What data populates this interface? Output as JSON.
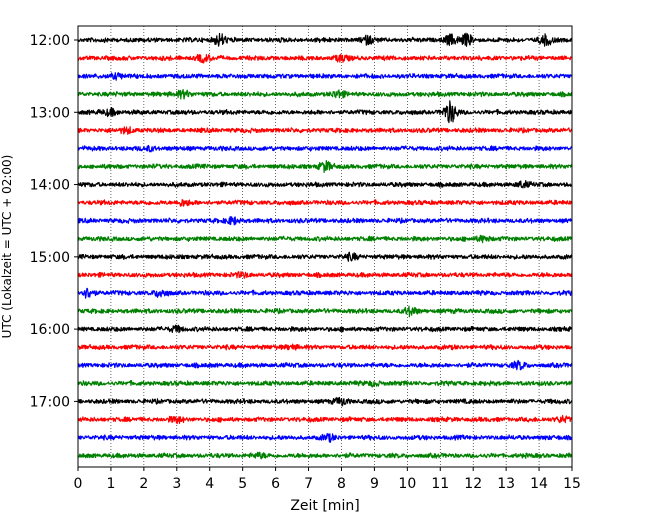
{
  "chart_data": {
    "type": "line",
    "title": "",
    "xlabel": "Zeit  [min]",
    "ylabel": "UTC (Lokalzeit = UTC + 02:00)",
    "xlim": [
      0,
      15
    ],
    "x_ticks": [
      0,
      1,
      2,
      3,
      4,
      5,
      6,
      7,
      8,
      9,
      10,
      11,
      12,
      13,
      14,
      15
    ],
    "grid": "vertical dotted",
    "legend": "none",
    "y_ticks": [
      "12:00",
      "13:00",
      "14:00",
      "15:00",
      "16:00",
      "17:00"
    ],
    "trace_colors": [
      "#000000",
      "#ff0000",
      "#0000ff",
      "#008000"
    ],
    "traces": [
      {
        "start": "12:00",
        "color": "#000000",
        "events": [
          {
            "min": 4.3,
            "amp": 0.9
          },
          {
            "min": 8.8,
            "amp": 0.5
          },
          {
            "min": 11.3,
            "amp": 0.7
          },
          {
            "min": 11.8,
            "amp": 0.8
          },
          {
            "min": 14.2,
            "amp": 0.7
          }
        ]
      },
      {
        "start": "12:15",
        "color": "#ff0000",
        "events": [
          {
            "min": 3.8,
            "amp": 0.5
          },
          {
            "min": 8.0,
            "amp": 0.4
          }
        ]
      },
      {
        "start": "12:30",
        "color": "#0000ff",
        "events": [
          {
            "min": 1.2,
            "amp": 0.4
          }
        ]
      },
      {
        "start": "12:45",
        "color": "#008000",
        "events": [
          {
            "min": 3.2,
            "amp": 0.6
          },
          {
            "min": 7.9,
            "amp": 0.5
          }
        ]
      },
      {
        "start": "13:00",
        "color": "#000000",
        "events": [
          {
            "min": 1.0,
            "amp": 0.5
          },
          {
            "min": 11.3,
            "amp": 1.6
          }
        ]
      },
      {
        "start": "13:15",
        "color": "#ff0000",
        "events": [
          {
            "min": 1.5,
            "amp": 0.4
          }
        ]
      },
      {
        "start": "13:30",
        "color": "#0000ff",
        "events": [
          {
            "min": 2.2,
            "amp": 0.3
          }
        ]
      },
      {
        "start": "13:45",
        "color": "#008000",
        "events": [
          {
            "min": 7.5,
            "amp": 0.7
          }
        ]
      },
      {
        "start": "14:00",
        "color": "#000000",
        "events": [
          {
            "min": 13.5,
            "amp": 0.4
          }
        ]
      },
      {
        "start": "14:15",
        "color": "#ff0000",
        "events": [
          {
            "min": 3.2,
            "amp": 0.4
          }
        ]
      },
      {
        "start": "14:30",
        "color": "#0000ff",
        "events": [
          {
            "min": 4.7,
            "amp": 0.5
          }
        ]
      },
      {
        "start": "14:45",
        "color": "#008000",
        "events": [
          {
            "min": 12.3,
            "amp": 0.4
          }
        ]
      },
      {
        "start": "15:00",
        "color": "#000000",
        "events": [
          {
            "min": 8.3,
            "amp": 0.4
          }
        ]
      },
      {
        "start": "15:15",
        "color": "#ff0000",
        "events": [
          {
            "min": 5.0,
            "amp": 0.3
          }
        ]
      },
      {
        "start": "15:30",
        "color": "#0000ff",
        "events": [
          {
            "min": 0.3,
            "amp": 0.7
          },
          {
            "min": 2.5,
            "amp": 0.5
          }
        ]
      },
      {
        "start": "15:45",
        "color": "#008000",
        "events": [
          {
            "min": 10.1,
            "amp": 0.6
          }
        ]
      },
      {
        "start": "16:00",
        "color": "#000000",
        "events": [
          {
            "min": 3.0,
            "amp": 0.4
          }
        ]
      },
      {
        "start": "16:15",
        "color": "#ff0000",
        "events": [
          {
            "min": 6.5,
            "amp": 0.3
          }
        ]
      },
      {
        "start": "16:30",
        "color": "#0000ff",
        "events": [
          {
            "min": 13.4,
            "amp": 0.5
          }
        ]
      },
      {
        "start": "16:45",
        "color": "#008000",
        "events": [
          {
            "min": 9.0,
            "amp": 0.3
          }
        ]
      },
      {
        "start": "17:00",
        "color": "#000000",
        "events": [
          {
            "min": 8.0,
            "amp": 0.5
          }
        ]
      },
      {
        "start": "17:15",
        "color": "#ff0000",
        "events": [
          {
            "min": 3.0,
            "amp": 0.4
          },
          {
            "min": 14.7,
            "amp": 0.4
          }
        ]
      },
      {
        "start": "17:30",
        "color": "#0000ff",
        "events": [
          {
            "min": 7.6,
            "amp": 0.4
          }
        ]
      },
      {
        "start": "17:45",
        "color": "#008000",
        "events": [
          {
            "min": 5.5,
            "amp": 0.3
          }
        ]
      }
    ]
  }
}
